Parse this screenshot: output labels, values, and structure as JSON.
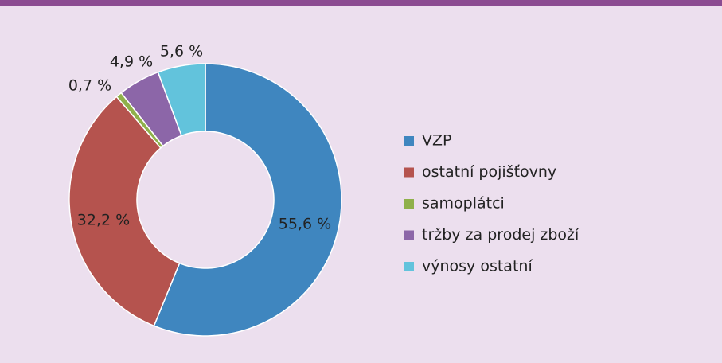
{
  "chart_data": {
    "type": "donut",
    "categories": [
      "VZP",
      "ostatní pojišťovny",
      "samoplátci",
      "tržby za prodej zboží",
      "výnosy ostatní"
    ],
    "values": [
      55.6,
      32.2,
      0.7,
      4.9,
      5.6
    ],
    "value_labels": [
      "55,6 %",
      "32,2 %",
      "0,7 %",
      "4,9 %",
      "5,6 %"
    ],
    "colors": [
      "#3f86bf",
      "#b5534e",
      "#8fb04a",
      "#8c66a8",
      "#62c3dc"
    ],
    "legend": "right"
  }
}
